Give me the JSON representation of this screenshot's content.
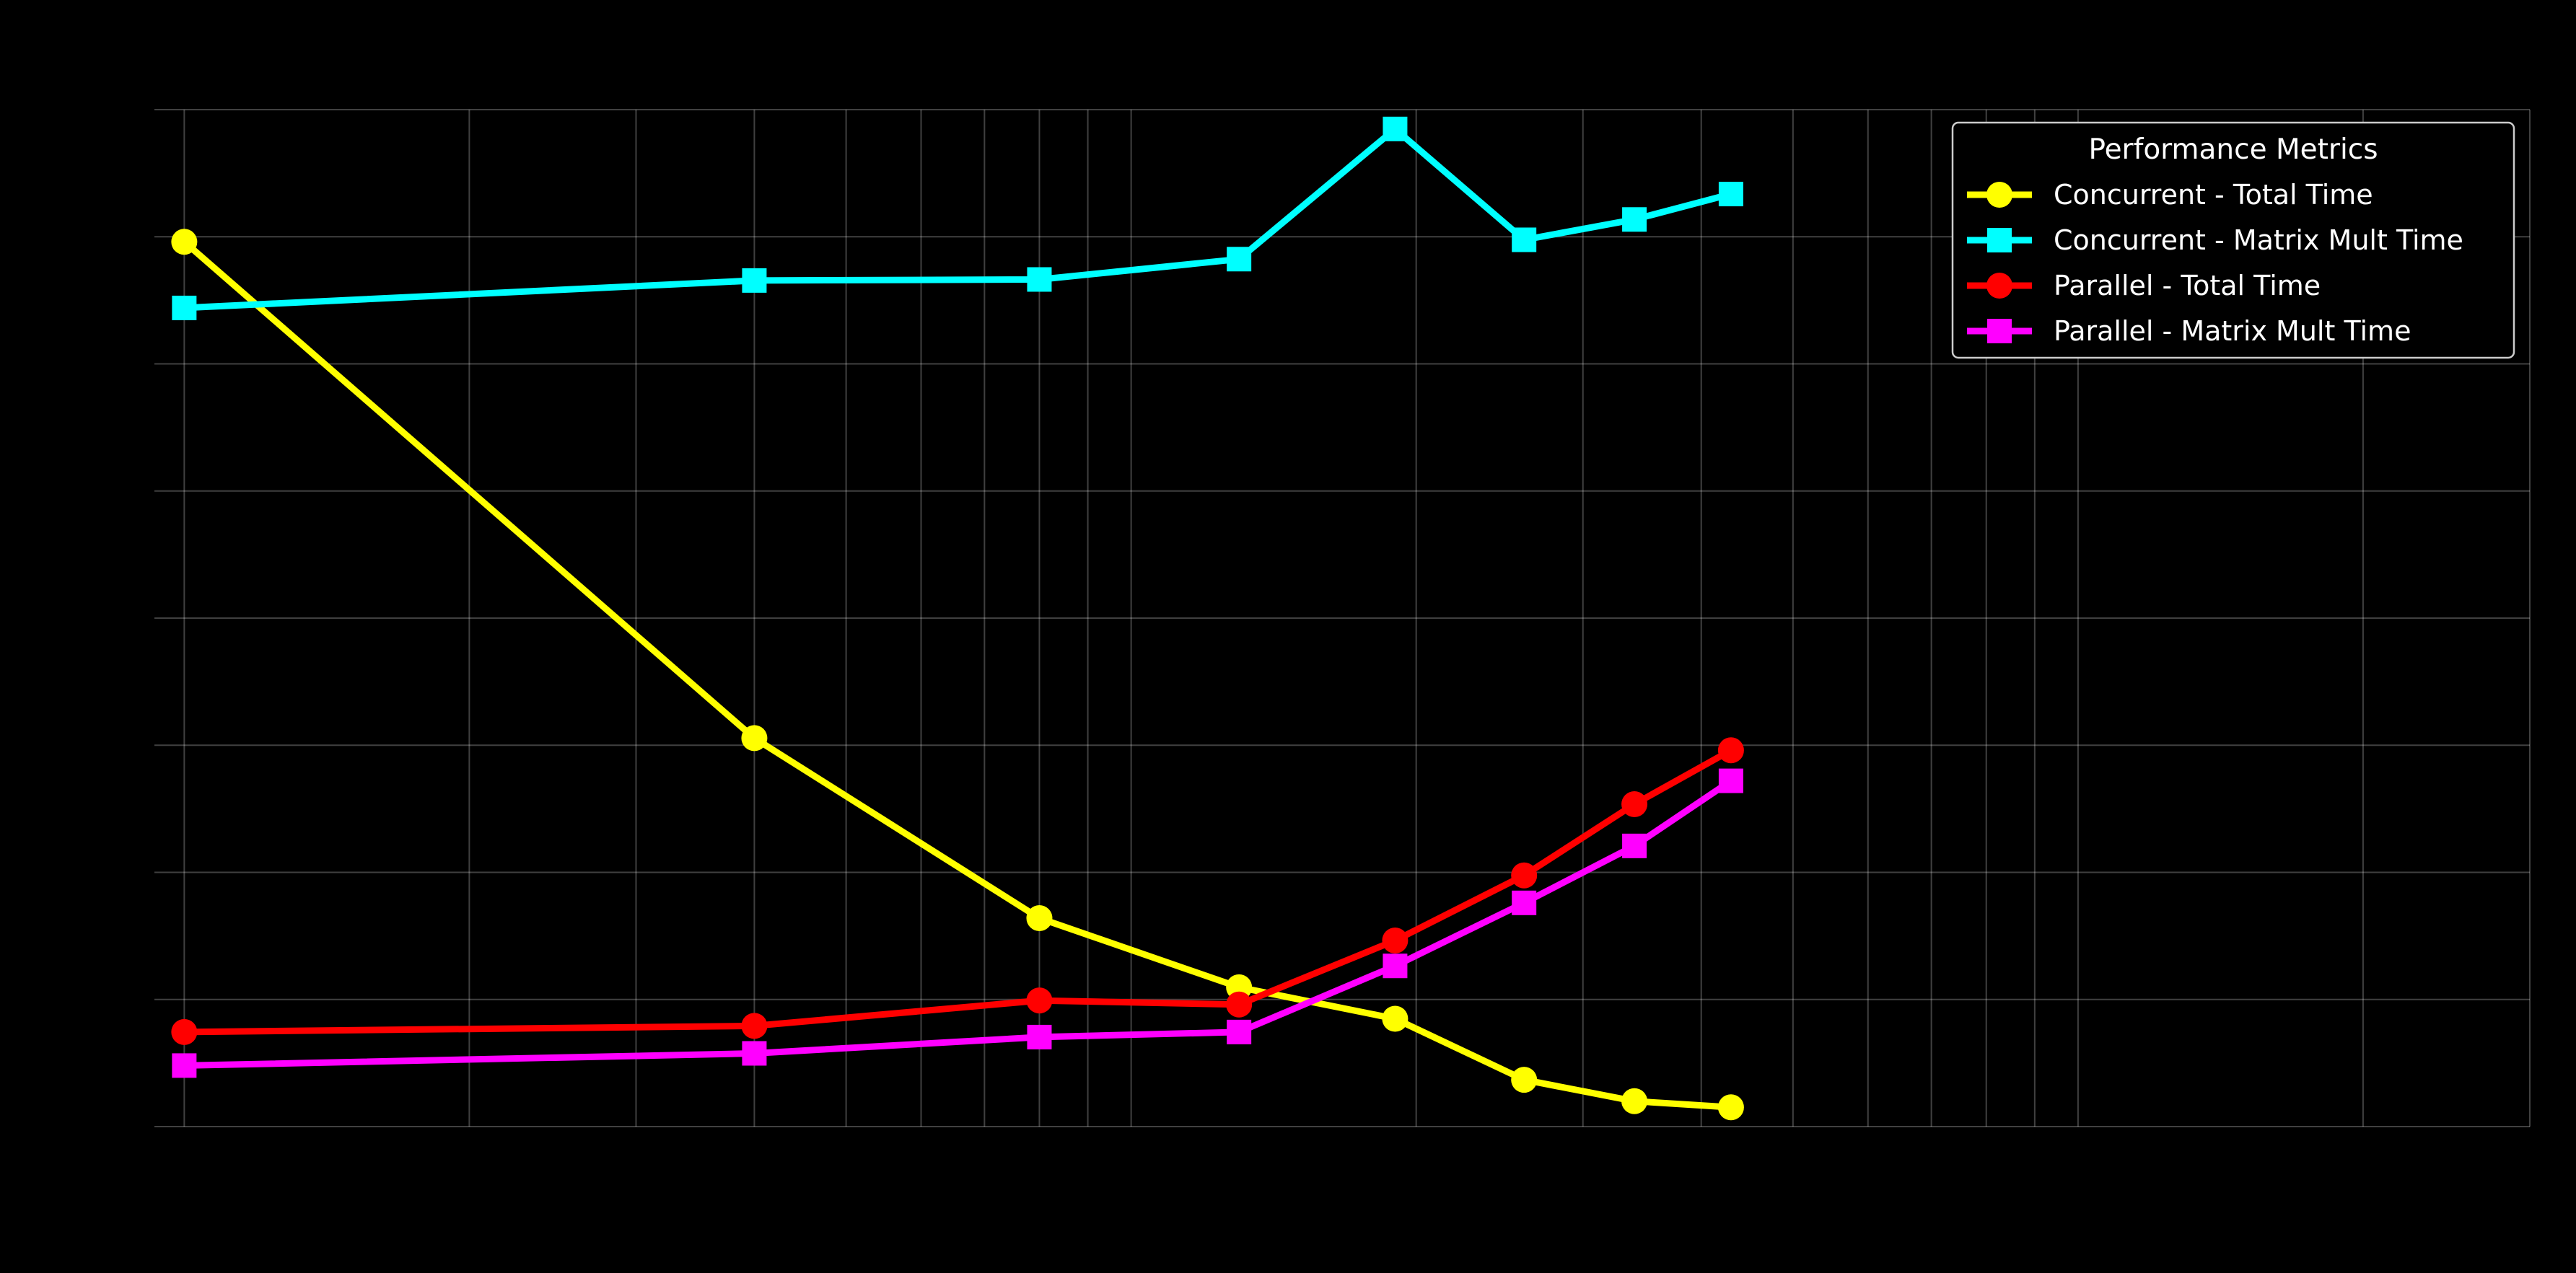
{
  "chart_data": {
    "type": "line",
    "title": "",
    "xlabel": "",
    "ylabel": "",
    "x_scale": "log",
    "xlim": [
      0.93,
      300
    ],
    "ylim": [
      0.0,
      1.0
    ],
    "grid": true,
    "background": "#000000",
    "x": [
      1,
      4,
      8,
      13,
      19,
      26,
      34,
      43
    ],
    "series": [
      {
        "name": "Concurrent - Total Time",
        "marker": "circle",
        "color": "#ffff00",
        "values": [
          0.87,
          0.382,
          0.205,
          0.137,
          0.106,
          0.046,
          0.025,
          0.019
        ]
      },
      {
        "name": "Concurrent - Matrix Mult Time",
        "marker": "square",
        "color": "#00ffff",
        "values": [
          0.805,
          0.832,
          0.833,
          0.853,
          0.981,
          0.872,
          0.892,
          0.917
        ]
      },
      {
        "name": "Parallel - Total Time",
        "marker": "circle",
        "color": "#ff0000",
        "values": [
          0.093,
          0.099,
          0.124,
          0.12,
          0.183,
          0.247,
          0.317,
          0.37
        ]
      },
      {
        "name": "Parallel - Matrix Mult Time",
        "marker": "square",
        "color": "#ff00ff",
        "values": [
          0.06,
          0.072,
          0.088,
          0.093,
          0.158,
          0.22,
          0.276,
          0.34
        ]
      }
    ],
    "legend": {
      "title": "Performance Metrics",
      "placement": "top-right"
    }
  }
}
